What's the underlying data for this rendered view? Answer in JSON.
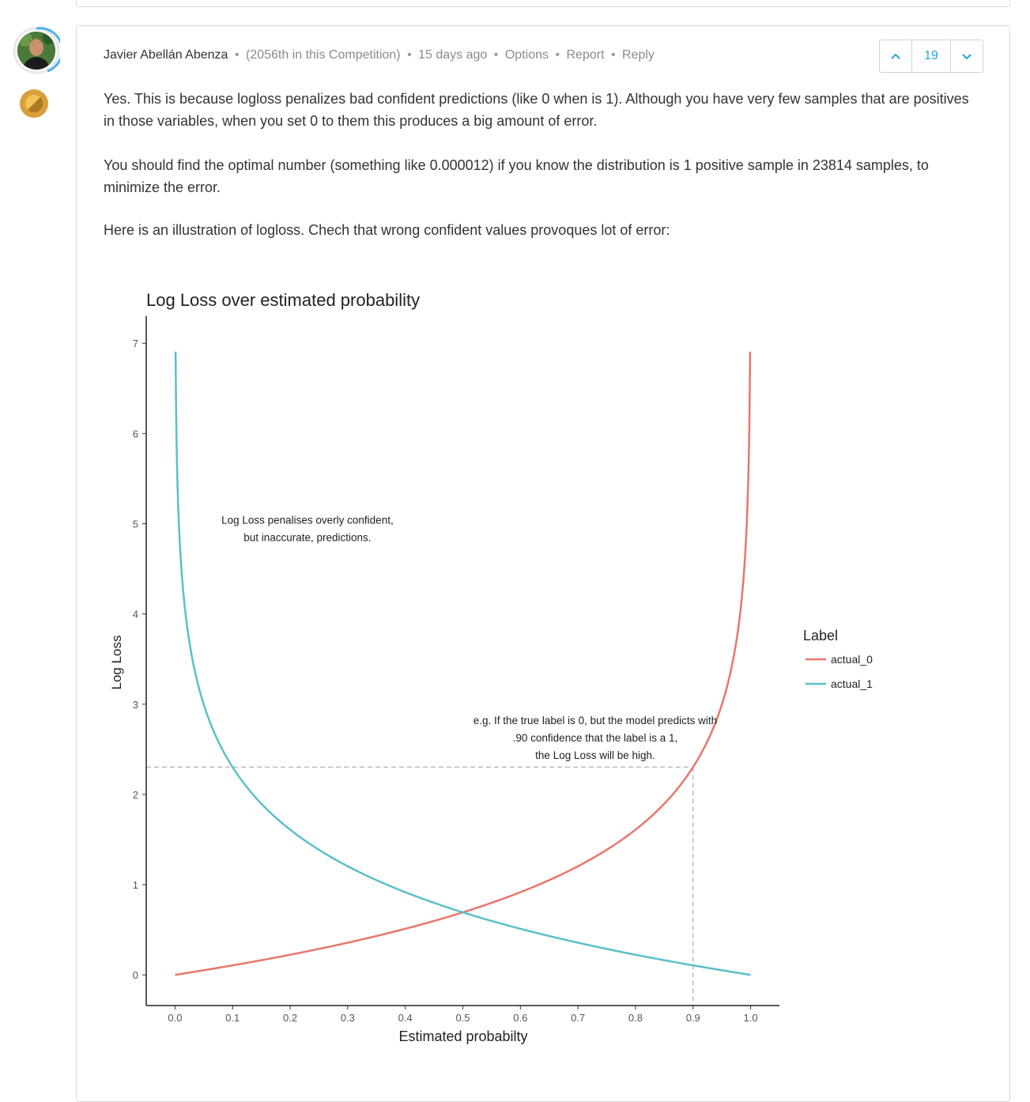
{
  "comment": {
    "author": "Javier Abellán Abenza",
    "rank": "(2056th in this Competition)",
    "time": "15 days ago",
    "actions": {
      "options": "Options",
      "report": "Report",
      "reply": "Reply"
    },
    "votes": "19",
    "paragraphs": [
      "Yes. This is because logloss penalizes bad confident predictions (like 0 when is 1). Although you have very few samples that are positives in those variables, when you set 0 to them this produces a big amount of error.",
      "You should find the optimal number (something like 0.000012) if you know the distribution is 1 positive sample in 23814 samples, to minimize the error.",
      "Here is an illustration of logloss. Chech that wrong confident values provoques lot of error:"
    ]
  },
  "icons": {
    "upvote": "chevron-up-icon",
    "downvote": "chevron-down-icon",
    "medal": "bronze-medal-icon",
    "avatar": "user-avatar"
  },
  "colors": {
    "accent": "#20a8d8",
    "actual_0": "#e8766b",
    "actual_1": "#5bbfc7",
    "medal": "#d8a03a"
  },
  "chart_data": {
    "type": "line",
    "title": "Log Loss over estimated probability",
    "xlabel": "Estimated probabilty",
    "ylabel": "Log Loss",
    "xlim": [
      -0.05,
      1.05
    ],
    "ylim": [
      -0.34,
      7.3
    ],
    "xticks": [
      0.0,
      0.1,
      0.2,
      0.3,
      0.4,
      0.5,
      0.6,
      0.7,
      0.8,
      0.9,
      1.0
    ],
    "xtick_labels": [
      "0.0",
      "0.1",
      "0.2",
      "0.3",
      "0.4",
      "0.5",
      "0.6",
      "0.7",
      "0.8",
      "0.9",
      "1.0"
    ],
    "yticks": [
      0,
      1,
      2,
      3,
      4,
      5,
      6,
      7
    ],
    "ytick_labels": [
      "0",
      "1",
      "2",
      "3",
      "4",
      "5",
      "6",
      "7"
    ],
    "legend_title": "Label",
    "legend_position": "right",
    "grid": false,
    "series": [
      {
        "name": "actual_0",
        "color": "#e8766b",
        "x": [
          0.0,
          0.1,
          0.2,
          0.3,
          0.4,
          0.5,
          0.6,
          0.7,
          0.8,
          0.9,
          0.95,
          0.99,
          0.999
        ],
        "y": [
          0.0,
          0.105,
          0.223,
          0.357,
          0.511,
          0.693,
          0.916,
          1.204,
          1.609,
          2.303,
          2.996,
          4.605,
          6.908
        ]
      },
      {
        "name": "actual_1",
        "color": "#5bbfc7",
        "x": [
          0.001,
          0.01,
          0.05,
          0.1,
          0.2,
          0.3,
          0.4,
          0.5,
          0.6,
          0.7,
          0.8,
          0.9,
          1.0
        ],
        "y": [
          6.908,
          4.605,
          2.996,
          2.303,
          1.609,
          1.204,
          0.916,
          0.693,
          0.511,
          0.357,
          0.223,
          0.105,
          0.0
        ]
      }
    ],
    "reference_lines": {
      "x": 0.9,
      "y": 2.303
    },
    "annotations": [
      {
        "lines": [
          "Log Loss penalises overly confident,",
          "but inaccurate, predictions."
        ],
        "x": 0.23,
        "y": 5.0
      },
      {
        "lines": [
          "e.g. If the true label is 0, but the model predicts with",
          ".90 confidence that the label is a 1,",
          "the Log Loss will be high."
        ],
        "x": 0.73,
        "y": 2.78
      }
    ]
  }
}
